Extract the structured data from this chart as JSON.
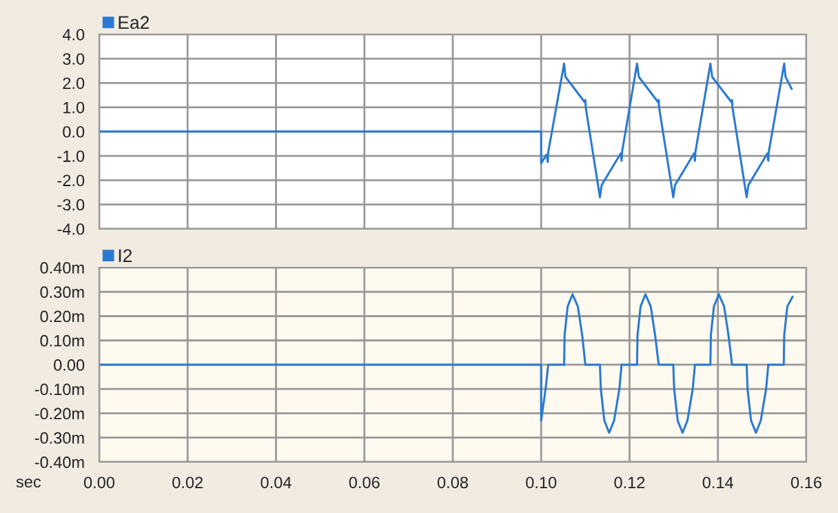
{
  "chart_data": [
    {
      "type": "line",
      "xlim": [
        0,
        0.16
      ],
      "xticks": [
        0,
        0.02,
        0.04,
        0.06,
        0.08,
        0.1,
        0.12,
        0.14,
        0.16
      ],
      "ylim": [
        -4,
        4
      ],
      "yticks": [
        {
          "value": 4,
          "label": "4.0"
        },
        {
          "value": 3,
          "label": "3.0"
        },
        {
          "value": 2,
          "label": "2.0"
        },
        {
          "value": 1,
          "label": "1.0"
        },
        {
          "value": 0,
          "label": "0.0"
        },
        {
          "value": -1,
          "label": "-1.0"
        },
        {
          "value": -2,
          "label": "-2.0"
        },
        {
          "value": -3,
          "label": "-3.0"
        },
        {
          "value": -4,
          "label": "-4.0"
        }
      ],
      "tick_labels": "y",
      "grid": true,
      "legend": "top left",
      "series": [
        {
          "name": "Ea2",
          "color": "#2a7ad2",
          "x": [
            0,
            0.1,
            0.1,
            0.1012,
            0.1015,
            0.1016,
            0.1052,
            0.1055,
            0.1099,
            0.11,
            0.1101,
            0.1133,
            0.1137,
            0.118,
            0.1182,
            0.1183,
            0.1217,
            0.1221,
            0.1265,
            0.1266,
            0.1267,
            0.1299,
            0.1303,
            0.1346,
            0.1348,
            0.1349,
            0.1383,
            0.1387,
            0.1431,
            0.1432,
            0.1433,
            0.1465,
            0.1469,
            0.1512,
            0.1514,
            0.1515,
            0.155,
            0.1553,
            0.1567
          ],
          "values": [
            0,
            0,
            -1.3,
            -0.95,
            -1.25,
            -0.85,
            2.8,
            2.25,
            1.2,
            1.3,
            0.98,
            -2.7,
            -2.2,
            -0.9,
            -1.2,
            -0.85,
            2.8,
            2.25,
            1.2,
            1.3,
            0.98,
            -2.7,
            -2.2,
            -0.9,
            -1.2,
            -0.85,
            2.8,
            2.25,
            1.2,
            1.3,
            0.98,
            -2.7,
            -2.2,
            -0.9,
            -1.2,
            -0.85,
            2.8,
            2.25,
            1.75
          ]
        }
      ]
    },
    {
      "type": "line",
      "xlabel": "sec",
      "xlim": [
        0,
        0.16
      ],
      "xticks": [
        {
          "value": 0,
          "label": "0.00"
        },
        {
          "value": 0.02,
          "label": "0.02"
        },
        {
          "value": 0.04,
          "label": "0.04"
        },
        {
          "value": 0.06,
          "label": "0.06"
        },
        {
          "value": 0.08,
          "label": "0.08"
        },
        {
          "value": 0.1,
          "label": "0.10"
        },
        {
          "value": 0.12,
          "label": "0.12"
        },
        {
          "value": 0.14,
          "label": "0.14"
        },
        {
          "value": 0.16,
          "label": "0.16"
        }
      ],
      "ylim": [
        -0.4,
        0.4
      ],
      "yticks": [
        {
          "value": 0.4,
          "label": "0.40m"
        },
        {
          "value": 0.3,
          "label": "0.30m"
        },
        {
          "value": 0.2,
          "label": "0.20m"
        },
        {
          "value": 0.1,
          "label": "0.10m"
        },
        {
          "value": 0,
          "label": "0.00"
        },
        {
          "value": -0.1,
          "label": "-0.10m"
        },
        {
          "value": -0.2,
          "label": "-0.20m"
        },
        {
          "value": -0.3,
          "label": "-0.30m"
        },
        {
          "value": -0.4,
          "label": "-0.40m"
        }
      ],
      "grid": true,
      "legend": "top left",
      "series": [
        {
          "name": "I2",
          "color": "#2a7ad2",
          "x": [
            0,
            0.1,
            0.1,
            0.101,
            0.1016,
            0.1052,
            0.1053,
            0.106,
            0.1071,
            0.1083,
            0.1093,
            0.11,
            0.1133,
            0.1135,
            0.1143,
            0.1154,
            0.1165,
            0.1177,
            0.1182,
            0.1217,
            0.1218,
            0.1225,
            0.1236,
            0.1248,
            0.1258,
            0.1266,
            0.1299,
            0.1301,
            0.1309,
            0.132,
            0.1331,
            0.1343,
            0.1348,
            0.1383,
            0.1384,
            0.1391,
            0.1402,
            0.1414,
            0.1424,
            0.1432,
            0.1465,
            0.1467,
            0.1475,
            0.1486,
            0.1497,
            0.1509,
            0.1514,
            0.1549,
            0.155,
            0.1557,
            0.1569
          ],
          "values": [
            0,
            0,
            -0.23,
            -0.1,
            0,
            0,
            0.12,
            0.24,
            0.29,
            0.24,
            0.12,
            0,
            0,
            -0.1,
            -0.23,
            -0.28,
            -0.23,
            -0.1,
            0,
            0,
            0.12,
            0.24,
            0.29,
            0.24,
            0.12,
            0,
            0,
            -0.1,
            -0.23,
            -0.28,
            -0.23,
            -0.1,
            0,
            0,
            0.12,
            0.24,
            0.29,
            0.24,
            0.12,
            0,
            0,
            -0.1,
            -0.23,
            -0.28,
            -0.23,
            -0.1,
            0,
            0,
            0.12,
            0.24,
            0.28
          ]
        }
      ]
    }
  ]
}
